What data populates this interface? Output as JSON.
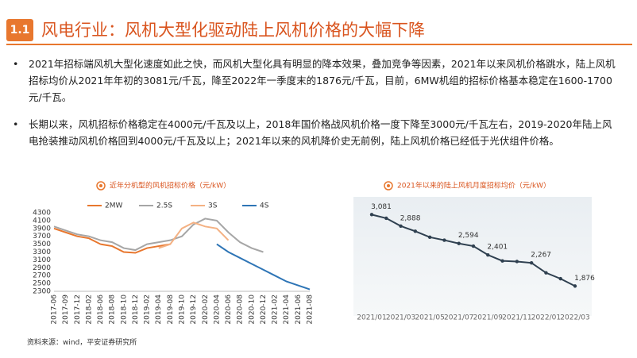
{
  "header": {
    "number": "1.1",
    "title": "风电行业：风机大型化驱动陆上风机价格的大幅下降"
  },
  "bullets": [
    "2021年招标端风机大型化速度如此之快，而风机大型化具有明显的降本效果，叠加竞争等因素，2021年以来风机价格跳水，陆上风机招标均价从2021年年初的3081元/千瓦，降至2022年一季度末的1876元/千瓦，目前，6MW机组的招标价格基本稳定在1600-1700元/千瓦。",
    "长期以来，风机招标价格稳定在4000元/千瓦及以上，2018年国价格战风机价格一度下降至3000元/千瓦左右，2019-2020年陆上风电抢装推动风机价格回到4000元/千瓦及以上；2021年以来的风机降价史无前例，陆上风机价格已经低于光伏组件价格。"
  ],
  "chart_data": [
    {
      "type": "line",
      "title": "近年分机型的风机招标价格（元/kW）",
      "categories": [
        "2017-06",
        "2017-09",
        "2017-12",
        "2018-02",
        "2018-06",
        "2018-08",
        "2018-10",
        "2018-12",
        "2019-02",
        "2019-04",
        "2019-08",
        "2019-10",
        "2019-12",
        "2020-02",
        "2020-04",
        "2020-06",
        "2020-08",
        "2020-10",
        "2020-12",
        "2021-02",
        "2021-04",
        "2021-06",
        "2021-08"
      ],
      "series": [
        {
          "name": "2MW",
          "color": "#e8772e",
          "values": [
            3900,
            3800,
            3700,
            3650,
            3500,
            3450,
            3300,
            3280,
            3400,
            3450,
            3500,
            null,
            null,
            null,
            null,
            null,
            null,
            null,
            null,
            null,
            null,
            null,
            null
          ]
        },
        {
          "name": "2.5S",
          "color": "#a6a6a6",
          "values": [
            3950,
            3850,
            3750,
            3700,
            3600,
            3550,
            3400,
            3350,
            3500,
            3550,
            3600,
            3700,
            4000,
            4150,
            4100,
            3800,
            3550,
            3400,
            3300,
            null,
            null,
            null,
            null
          ]
        },
        {
          "name": "3S",
          "color": "#f4b183",
          "values": [
            null,
            null,
            null,
            null,
            null,
            null,
            null,
            null,
            null,
            3400,
            3500,
            3900,
            4050,
            3950,
            3900,
            3600,
            null,
            null,
            null,
            null,
            null,
            null,
            null
          ]
        },
        {
          "name": "4S",
          "color": "#2e75b6",
          "values": [
            null,
            null,
            null,
            null,
            null,
            null,
            null,
            null,
            null,
            null,
            null,
            null,
            null,
            null,
            3500,
            3300,
            3150,
            3000,
            2850,
            2700,
            2550,
            2450,
            2350
          ]
        }
      ],
      "ylim": [
        2300,
        4300
      ],
      "yticks": [
        2300,
        2500,
        2700,
        2900,
        3100,
        3300,
        3500,
        3700,
        3900,
        4100,
        4300
      ],
      "legend": "top"
    },
    {
      "type": "line",
      "title": "2021年以来的陆上风机月度招标均价（元/kW）",
      "categories": [
        "2021/01",
        null,
        "2021/03",
        null,
        "2021/05",
        null,
        "2021/07",
        null,
        "2021/09",
        null,
        "2021/11",
        null,
        "2022/01",
        null,
        "2022/03"
      ],
      "series": [
        {
          "color": "#2f4050",
          "values": [
            3081,
            3020,
            2888,
            2800,
            2700,
            2650,
            2594,
            2550,
            2401,
            2300,
            2290,
            2267,
            2100,
            2000,
            1876
          ],
          "value_labels": [
            "3,081",
            null,
            "2,888",
            null,
            null,
            null,
            "2,594",
            null,
            "2,401",
            null,
            null,
            "2,267",
            null,
            null,
            "1,876"
          ]
        }
      ],
      "ylim": [
        1600,
        3300
      ]
    }
  ],
  "source": "资料来源：wind，平安证券研究所"
}
